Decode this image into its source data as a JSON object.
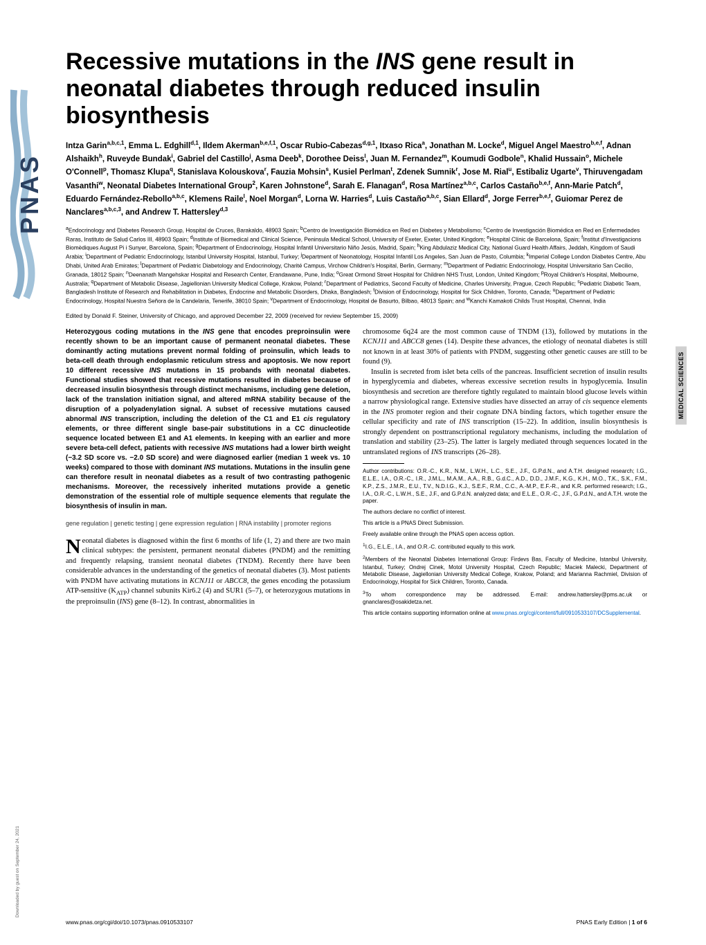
{
  "title_pre": "Recessive mutations in the ",
  "title_gene": "INS",
  "title_post": " gene result in neonatal diabetes through reduced insulin biosynthesis",
  "authors_html": "Intza Garin<sup>a,b,c,1</sup>, Emma L. Edghill<sup>d,1</sup>, Ildem Akerman<sup>b,e,f,1</sup>, Oscar Rubio-Cabezas<sup>d,g,1</sup>, Itxaso Rica<sup>a</sup>, Jonathan M. Locke<sup>d</sup>, Miguel Angel Maestro<sup>b,e,f</sup>, Adnan Alshaikh<sup>h</sup>, Ruveyde Bundak<sup>i</sup>, Gabriel del Castillo<sup>j</sup>, Asma Deeb<sup>k</sup>, Dorothee Deiss<sup>l</sup>, Juan M. Fernandez<sup>m</sup>, Koumudi Godbole<sup>n</sup>, Khalid Hussain<sup>o</sup>, Michele O'Connell<sup>p</sup>, Thomasz Klupa<sup>q</sup>, Stanislava Kolouskova<sup>r</sup>, Fauzia Mohsin<sup>s</sup>, Kusiel Perlman<sup>t</sup>, Zdenek Sumnik<sup>r</sup>, Jose M. Rial<sup>u</sup>, Estibaliz Ugarte<sup>v</sup>, Thiruvengadam Vasanthi<sup>w</sup>, Neonatal Diabetes International Group<sup>2</sup>, Karen Johnstone<sup>d</sup>, Sarah E. Flanagan<sup>d</sup>, Rosa Martínez<sup>a,b,c</sup>, Carlos Castaño<sup>b,e,f</sup>, Ann-Marie Patch<sup>d</sup>, Eduardo Fernández-Rebollo<sup>a,b,c</sup>, Klemens Raile<sup>l</sup>, Noel Morgan<sup>d</sup>, Lorna W. Harries<sup>d</sup>, Luis Castaño<sup>a,b,c</sup>, Sian Ellard<sup>d</sup>, Jorge Ferrer<sup>b,e,f</sup>, Guiomar Perez de Nanclares<sup>a,b,c,3</sup>, and Andrew T. Hattersley<sup>d,3</sup>",
  "affiliations_html": "<sup>a</sup>Endocrinology and Diabetes Research Group, Hospital de Cruces, Barakaldo, 48903 Spain; <sup>b</sup>Centro de Investigación Biomédica en Red en Diabetes y Metabolismo; <sup>c</sup>Centro de Investigación Biomédica en Red en Enfermedades Raras, Instituto de Salud Carlos III, 48903 Spain; <sup>d</sup>Institute of Biomedical and Clinical Science, Peninsula Medical School, University of Exeter, Exeter, United Kingdom; <sup>e</sup>Hospital Clínic de Barcelona, Spain; <sup>f</sup>Institut d'Investigacions Biomèdiques August Pi i Sunyer, Barcelona, Spain; <sup>g</sup>Department of Endocrinology, Hospital Infantil Universitario Niño Jesús, Madrid, Spain; <sup>h</sup>King Abdulaziz Medical City, National Guard Health Affairs, Jeddah, Kingdom of Saudi Arabia; <sup>i</sup>Department of Pediatric Endocrinology, Istanbul University Hospital, Istanbul, Turkey; <sup>j</sup>Department of Neonatology, Hospital Infantil Los Angeles, San Juan de Pasto, Columbia; <sup>k</sup>Imperial College London Diabetes Centre, Abu Dhabi, United Arab Emirates; <sup>l</sup>Department of Pediatric Diabetology and Endocrinology, Charité Campus, Virchow Children's Hospital, Berlin, Germany; <sup>m</sup>Department of Pediatric Endocrinology, Hospital Universitario San Cecilio, Granada, 18012 Spain; <sup>n</sup>Deenanath Mangehskar Hospital and Research Center, Erandawane, Pune, India; <sup>o</sup>Great Ormond Street Hospital for Children NHS Trust, London, United Kingdom; <sup>p</sup>Royal Children's Hospital, Melbourne, Australia; <sup>q</sup>Department of Metabolic Disease, Jagiellonian University Medical College, Krakow, Poland; <sup>r</sup>Department of Pediatrics, Second Faculty of Medicine, Charles University, Prague, Czech Republic; <sup>s</sup>Pediatric Diabetic Team, Bangladesh Institute of Research and Rehabilitation in Diabetes, Endocrine and Metabolic Disorders, Dhaka, Bangladesh; <sup>t</sup>Division of Endocrinology, Hospital for Sick Children, Toronto, Canada; <sup>u</sup>Department of Pediatric Endocrinology, Hospital Nuestra Señora de la Candelaria, Tenerife, 38010 Spain; <sup>v</sup>Department of Endocrinology, Hospital de Basurto, Bilbao, 48013 Spain; and <sup>w</sup>Kanchi Kamakoti Childs Trust Hospital, Chennai, India",
  "edited": "Edited by Donald F. Steiner, University of Chicago, and approved December 22, 2009 (received for review September 15, 2009)",
  "abstract_html": "Heterozygous coding mutations in the <span class=\"ital\">INS</span> gene that encodes preproinsulin were recently shown to be an important cause of permanent neonatal diabetes. These dominantly acting mutations prevent normal folding of proinsulin, which leads to beta-cell death through endoplasmic reticulum stress and apoptosis. We now report 10 different recessive <span class=\"ital\">INS</span> mutations in 15 probands with neonatal diabetes. Functional studies showed that recessive mutations resulted in diabetes because of decreased insulin biosynthesis through distinct mechanisms, including gene deletion, lack of the translation initiation signal, and altered mRNA stability because of the disruption of a polyadenylation signal. A subset of recessive mutations caused abnormal <span class=\"ital\">INS</span> transcription, including the deletion of the C1 and E1 <span class=\"ital\">cis</span> regulatory elements, or three different single base-pair substitutions in a CC dinucleotide sequence located between E1 and A1 elements. In keeping with an earlier and more severe beta-cell defect, patients with recessive <span class=\"ital\">INS</span> mutations had a lower birth weight (−3.2 SD score vs. −2.0 SD score) and were diagnosed earlier (median 1 week vs. 10 weeks) compared to those with dominant <span class=\"ital\">INS</span> mutations. Mutations in the insulin gene can therefore result in neonatal diabetes as a result of two contrasting pathogenic mechanisms. Moreover, the recessively inherited mutations provide a genetic demonstration of the essential role of multiple sequence elements that regulate the biosynthesis of insulin in man.",
  "keywords": "gene regulation | genetic testing | gene expression regulation | RNA instability | promoter regions",
  "body_p1_html": "eonatal diabetes is diagnosed within the first 6 months of life (1, 2) and there are two main clinical subtypes: the persistent, permanent neonatal diabetes (PNDM) and the remitting and frequently relapsing, transient neonatal diabetes (TNDM). Recently there have been considerable advances in the understanding of the genetics of neonatal diabetes (3). Most patients with PNDM have activating mutations in <span class=\"ital\">KCNJ11</span> or <span class=\"ital\">ABCC8</span>, the genes encoding the potassium ATP-sensitive (K<sub>ATP</sub>) channel subunits Kir6.2 (4) and SUR1 (5–7), or heterozygous mutations in the preproinsulin (<span class=\"ital\">INS</span>) gene (8–12). In contrast, abnormalities in",
  "body_p2_html": "chromosome 6q24 are the most common cause of TNDM (13), followed by mutations in the <span class=\"ital\">KCNJ11</span> and <span class=\"ital\">ABCC8</span> genes (14). Despite these advances, the etiology of neonatal diabetes is still not known in at least 30% of patients with PNDM, suggesting other genetic causes are still to be found (9).",
  "body_p3_html": "Insulin is secreted from islet beta cells of the pancreas. Insufficient secretion of insulin results in hyperglycemia and diabetes, whereas excessive secretion results in hypoglycemia. Insulin biosynthesis and secretion are therefore tightly regulated to maintain blood glucose levels within a narrow physiological range. Extensive studies have dissected an array of <span class=\"ital\">cis</span> sequence elements in the <span class=\"ital\">INS</span> promoter region and their cognate DNA binding factors, which together ensure the cellular specificity and rate of <span class=\"ital\">INS</span> transcription (15–22). In addition, insulin biosynthesis is strongly dependent on posttranscriptional regulatory mechanisms, including the modulation of translation and stability (23–25). The latter is largely mediated through sequences located in the untranslated regions of <span class=\"ital\">INS</span> transcripts (26–28).",
  "contrib_html": "Author contributions: O.R.-C., K.R., N.M., L.W.H., L.C., S.E., J.F., G.P.d.N., and A.T.H. designed research; I.G., E.L.E., I.A., O.R.-C., I.R., J.M.L., M.A.M., A.A., R.B., G.d.C., A.D., D.D., J.M.F., K.G., K.H., M.O., T.K., S.K., F.M., K.P., Z.S., J.M.R., E.U., T.V., N.D.I.G., K.J., S.E.F., R.M., C.C., A.-M.P., E.F.-R., and K.R. performed research; I.G., I.A., O.R.-C., L.W.H., S.E., J.F., and G.P.d.N. analyzed data; and E.L.E., O.R.-C., J.F., G.P.d.N., and A.T.H. wrote the paper.",
  "conflict": "The authors declare no conflict of interest.",
  "direct": "This article is a PNAS Direct Submission.",
  "open": "Freely available online through the PNAS open access option.",
  "note1": "<sup>1</sup>I.G., E.L.E., I.A., and O.R.-C. contributed equally to this work.",
  "note2": "<sup>2</sup>Members of the Neonatal Diabetes International Group: Firdevs Bas, Faculty of Medicine, Istanbul University, Istanbul, Turkey; Ondrej Cinek, Motol University Hospital, Czech Republic; Maciek Malecki, Department of Metabolic Disease, Jagiellonian University Medical College, Krakow, Poland; and Marianna Rachmiel, Division of Endocrinology, Hospital for Sick Children, Toronto, Canada.",
  "note3": "<sup>3</sup>To whom correspondence may be addressed. E-mail: andrew.hattersley@pms.ac.uk or gnanclares@osakidetza.net.",
  "supp_pre": "This article contains supporting information online at ",
  "supp_link": "www.pnas.org/cgi/content/full/0910533107/DCSupplemental",
  "footer_left": "www.pnas.org/cgi/doi/10.1073/pnas.0910533107",
  "footer_right_pre": "PNAS Early Edition | ",
  "footer_right_bold": "1 of 6",
  "side_label": "MEDICAL SCIENCES",
  "download_note": "Downloaded by guest on September 24, 2021",
  "logo_colors": {
    "outer": "#5b8fb5",
    "text": "#2a3f5f"
  }
}
